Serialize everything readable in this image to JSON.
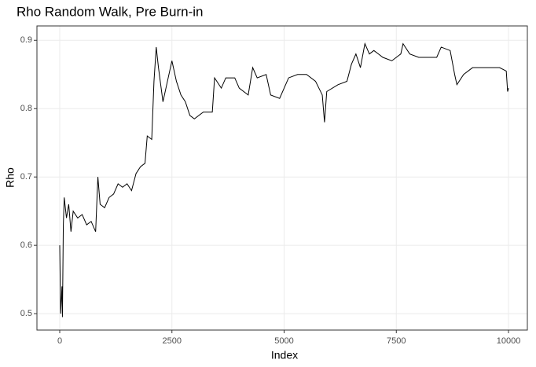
{
  "chart_data": {
    "type": "line",
    "title": "Rho Random Walk, Pre Burn-in",
    "x_label": "Index",
    "y_label": "Rho",
    "x": [
      0,
      20,
      50,
      60,
      80,
      100,
      150,
      200,
      250,
      300,
      400,
      500,
      600,
      700,
      800,
      850,
      900,
      1000,
      1100,
      1200,
      1300,
      1400,
      1500,
      1600,
      1700,
      1800,
      1900,
      1950,
      2050,
      2100,
      2150,
      2200,
      2300,
      2400,
      2500,
      2600,
      2700,
      2800,
      2900,
      3000,
      3200,
      3400,
      3450,
      3600,
      3700,
      3900,
      4000,
      4200,
      4300,
      4400,
      4600,
      4700,
      4900,
      5100,
      5300,
      5500,
      5700,
      5850,
      5900,
      5950,
      6200,
      6400,
      6500,
      6600,
      6700,
      6800,
      6900,
      7000,
      7100,
      7200,
      7400,
      7600,
      7650,
      7800,
      8000,
      8200,
      8400,
      8500,
      8700,
      8800,
      8850,
      9000,
      9200,
      9400,
      9600,
      9800,
      9950,
      9980,
      10000
    ],
    "series": [
      {
        "name": "Rho",
        "color": "#000000",
        "values": [
          0.6,
          0.5,
          0.54,
          0.495,
          0.63,
          0.67,
          0.64,
          0.66,
          0.62,
          0.65,
          0.64,
          0.645,
          0.63,
          0.635,
          0.62,
          0.7,
          0.66,
          0.655,
          0.67,
          0.675,
          0.69,
          0.685,
          0.69,
          0.68,
          0.705,
          0.715,
          0.72,
          0.76,
          0.755,
          0.84,
          0.89,
          0.86,
          0.81,
          0.84,
          0.87,
          0.84,
          0.82,
          0.81,
          0.79,
          0.785,
          0.795,
          0.795,
          0.845,
          0.83,
          0.845,
          0.845,
          0.83,
          0.82,
          0.86,
          0.845,
          0.85,
          0.82,
          0.815,
          0.845,
          0.85,
          0.85,
          0.84,
          0.82,
          0.78,
          0.825,
          0.835,
          0.84,
          0.865,
          0.88,
          0.86,
          0.895,
          0.88,
          0.885,
          0.88,
          0.875,
          0.87,
          0.88,
          0.895,
          0.88,
          0.875,
          0.875,
          0.875,
          0.89,
          0.885,
          0.85,
          0.835,
          0.85,
          0.86,
          0.86,
          0.86,
          0.86,
          0.855,
          0.825,
          0.83
        ]
      }
    ],
    "xlim": [
      -508,
      10420
    ],
    "ylim": [
      0.476,
      0.921
    ],
    "xticks": [
      0,
      2500,
      5000,
      7500,
      10000
    ],
    "yticks": [
      0.5,
      0.6,
      0.7,
      0.8,
      0.9
    ],
    "grid": true
  }
}
